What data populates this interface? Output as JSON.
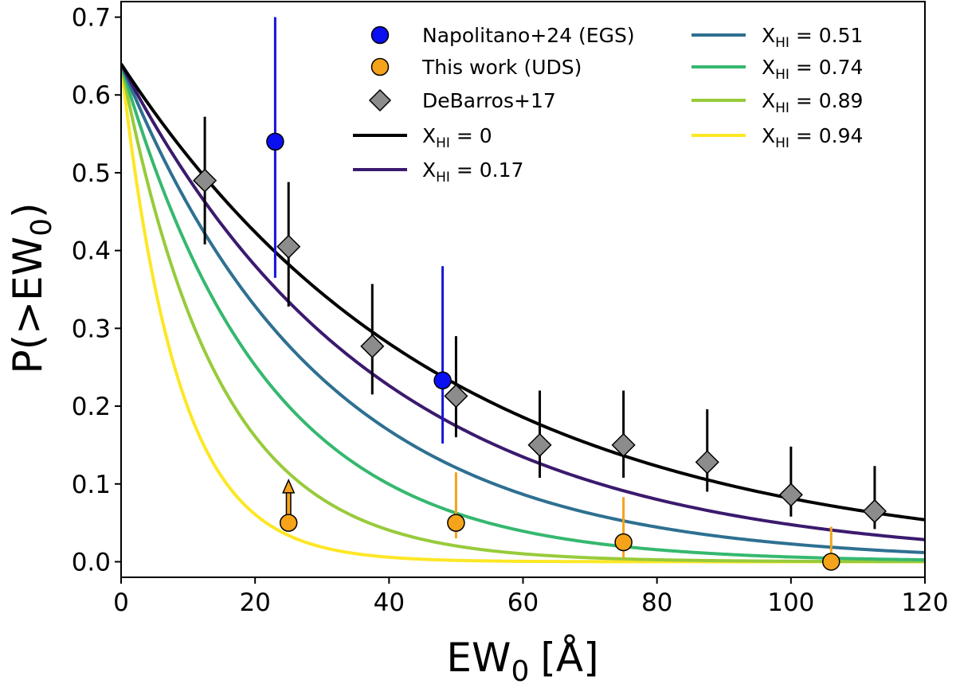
{
  "chart_data": {
    "type": "line",
    "xlabel_main": "EW",
    "xlabel_sub": "0",
    "xlabel_unit": "[Å]",
    "ylabel_main": "P(>EW",
    "ylabel_sub": "0",
    "ylabel_close": ")",
    "xlim": [
      0,
      120
    ],
    "ylim": [
      -0.02,
      0.72
    ],
    "xticks": [
      "0",
      "20",
      "40",
      "60",
      "80",
      "100",
      "120"
    ],
    "xtick_values": [
      0,
      20,
      40,
      60,
      80,
      100,
      120
    ],
    "yticks": [
      "0.0",
      "0.1",
      "0.2",
      "0.3",
      "0.4",
      "0.5",
      "0.6",
      "0.7"
    ],
    "ytick_values": [
      0,
      0.1,
      0.2,
      0.3,
      0.4,
      0.5,
      0.6,
      0.7
    ],
    "model_curves": [
      {
        "name": "X_HI = 0",
        "label_pre": "X",
        "label_sub": "HI",
        "label_post": " = 0",
        "color": "#000000",
        "p0": 0.64,
        "scale": 48.5
      },
      {
        "name": "X_HI = 0.17",
        "label_pre": "X",
        "label_sub": "HI",
        "label_post": " = 0.17",
        "color": "#3b1a6e",
        "p0": 0.64,
        "scale": 38.5
      },
      {
        "name": "X_HI = 0.51",
        "label_pre": "X",
        "label_sub": "HI",
        "label_post": " = 0.51",
        "color": "#2e7091",
        "p0": 0.64,
        "scale": 30.0
      },
      {
        "name": "X_HI = 0.74",
        "label_pre": "X",
        "label_sub": "HI",
        "label_post": " = 0.74",
        "color": "#35b86f",
        "p0": 0.64,
        "scale": 21.5
      },
      {
        "name": "X_HI = 0.89",
        "label_pre": "X",
        "label_sub": "HI",
        "label_post": " = 0.89",
        "color": "#98cb3b",
        "p0": 0.64,
        "scale": 14.5
      },
      {
        "name": "X_HI = 0.94",
        "label_pre": "X",
        "label_sub": "HI",
        "label_post": " = 0.94",
        "color": "#fde725",
        "p0": 0.64,
        "scale": 8.5
      }
    ],
    "datasets": [
      {
        "name": "Napolitano+24 (EGS)",
        "label": "Napolitano+24 (EGS)",
        "marker": "circle",
        "face_color": "#0a10f0",
        "err_color": "#1414d8",
        "points": [
          {
            "x": 23,
            "y": 0.54,
            "ylo": 0.365,
            "yhi": 0.7
          },
          {
            "x": 48,
            "y": 0.233,
            "ylo": 0.152,
            "yhi": 0.38
          }
        ]
      },
      {
        "name": "This work (UDS)",
        "label": "This work (UDS)",
        "marker": "circle",
        "face_color": "#f5a31a",
        "err_color": "#f5a31a",
        "points": [
          {
            "x": 25,
            "y": 0.05,
            "lower_limit": true
          },
          {
            "x": 50,
            "y": 0.05,
            "ylo": 0.03,
            "yhi": 0.115
          },
          {
            "x": 75,
            "y": 0.025,
            "ylo": 0.005,
            "yhi": 0.083
          },
          {
            "x": 106,
            "y": 0.0,
            "ylo": 0.0,
            "yhi": 0.045
          }
        ]
      },
      {
        "name": "DeBarros+17",
        "label": "DeBarros+17",
        "marker": "diamond",
        "face_color": "#8c8c8c",
        "err_color": "#000000",
        "points": [
          {
            "x": 12.5,
            "y": 0.49,
            "ylo": 0.408,
            "yhi": 0.572
          },
          {
            "x": 25,
            "y": 0.405,
            "ylo": 0.328,
            "yhi": 0.488
          },
          {
            "x": 37.5,
            "y": 0.277,
            "ylo": 0.215,
            "yhi": 0.357
          },
          {
            "x": 50,
            "y": 0.213,
            "ylo": 0.16,
            "yhi": 0.29
          },
          {
            "x": 62.5,
            "y": 0.15,
            "ylo": 0.108,
            "yhi": 0.22
          },
          {
            "x": 75,
            "y": 0.15,
            "ylo": 0.108,
            "yhi": 0.22
          },
          {
            "x": 87.5,
            "y": 0.128,
            "ylo": 0.09,
            "yhi": 0.196
          },
          {
            "x": 100,
            "y": 0.086,
            "ylo": 0.058,
            "yhi": 0.148
          },
          {
            "x": 112.5,
            "y": 0.065,
            "ylo": 0.042,
            "yhi": 0.123
          }
        ]
      }
    ],
    "legend_position": "top"
  }
}
